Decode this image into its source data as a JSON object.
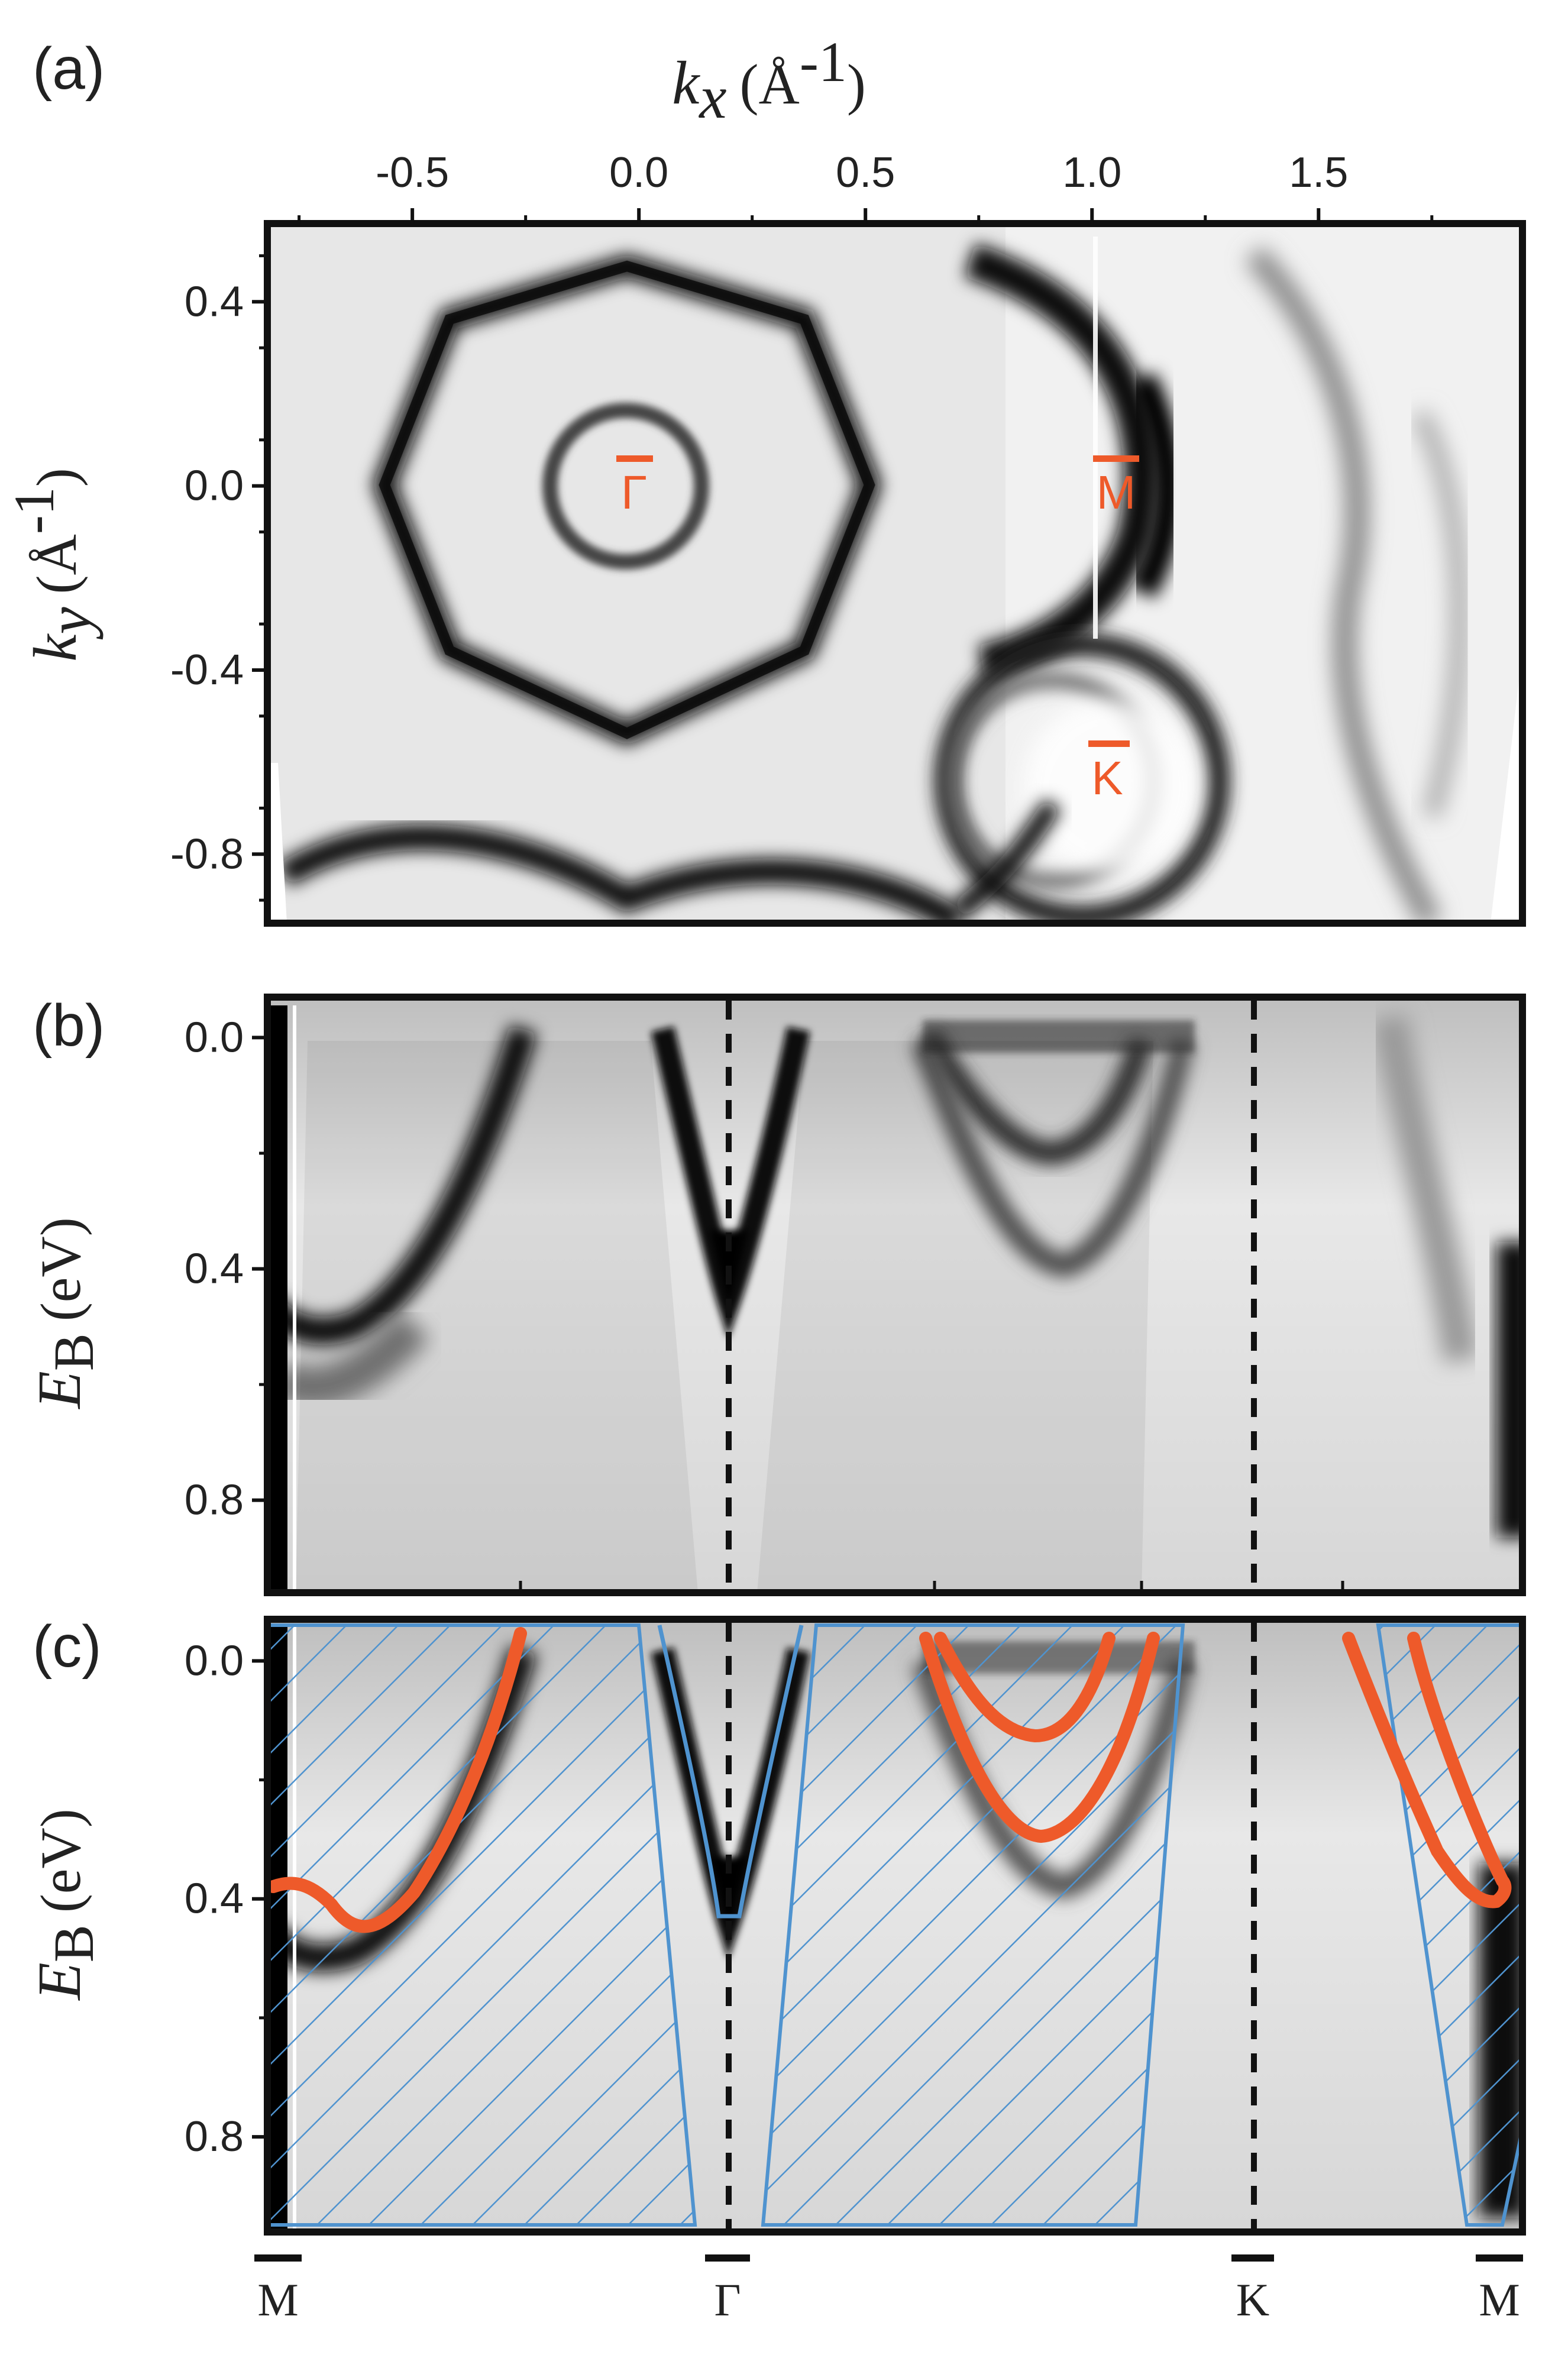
{
  "panel_labels": {
    "a": "(a)",
    "b": "(b)",
    "c": "(c)"
  },
  "axes": {
    "kx_label": "k",
    "kx_sub": "x",
    "kx_unit": "(Å",
    "kx_unit_sup": "-1",
    "kx_unit_close": ")",
    "ky_label": "k",
    "ky_sub": "y",
    "ky_unit": "(Å",
    "ky_unit_sup": "-1",
    "ky_unit_close": ")",
    "eb_label": "E",
    "eb_sub": "B",
    "eb_unit": "(eV)"
  },
  "point_labels": {
    "gamma": "Γ",
    "m": "M",
    "k": "K"
  },
  "high_symmetry": [
    "M",
    "Γ",
    "K",
    "M"
  ],
  "colors": {
    "intensity": "#111111",
    "overlay_red": "#ee5a2a",
    "hatch_blue": "#4f93cf",
    "frame": "#111111"
  },
  "chart_data": [
    {
      "type": "heatmap",
      "panel": "(a)",
      "title": "",
      "xlabel": "kx (Å-1)",
      "ylabel": "ky (Å-1)",
      "xlim": [
        -0.82,
        1.95
      ],
      "ylim": [
        -0.95,
        0.57
      ],
      "x_ticks": [
        -0.5,
        0.0,
        0.5,
        1.0,
        1.5
      ],
      "x_tick_labels": [
        "-0.5",
        "0.0",
        "0.5",
        "1.0",
        "1.5"
      ],
      "y_ticks": [
        0.4,
        0.0,
        -0.4,
        -0.8
      ],
      "y_tick_labels": [
        "0.4",
        "0.0",
        "-0.4",
        "-0.8"
      ],
      "points": [
        {
          "name": "Γ",
          "kx": 0.0,
          "ky": 0.0
        },
        {
          "name": "M",
          "kx": 1.03,
          "ky": 0.0
        },
        {
          "name": "K",
          "kx": 1.03,
          "ky": -0.6
        }
      ]
    },
    {
      "type": "heatmap",
      "panel": "(b)",
      "title": "",
      "xlabel": "",
      "ylabel": "EB (eV)",
      "ylim": [
        0.96,
        -0.07
      ],
      "y_ticks": [
        0.0,
        0.4,
        0.8
      ],
      "y_tick_labels": [
        "0.0",
        "0.4",
        "0.8"
      ],
      "x_path": [
        "M",
        "Γ",
        "K",
        "M"
      ]
    },
    {
      "type": "heatmap",
      "panel": "(c)",
      "title": "",
      "xlabel": "",
      "ylabel": "EB (eV)",
      "ylim": [
        0.96,
        -0.07
      ],
      "y_ticks": [
        0.0,
        0.4,
        0.8
      ],
      "y_tick_labels": [
        "0.0",
        "0.4",
        "0.8"
      ],
      "x_path": [
        "M",
        "Γ",
        "K",
        "M"
      ],
      "overlays": [
        "hatched projected bulk bands (blue)",
        "surface state dispersions (red)"
      ]
    }
  ]
}
